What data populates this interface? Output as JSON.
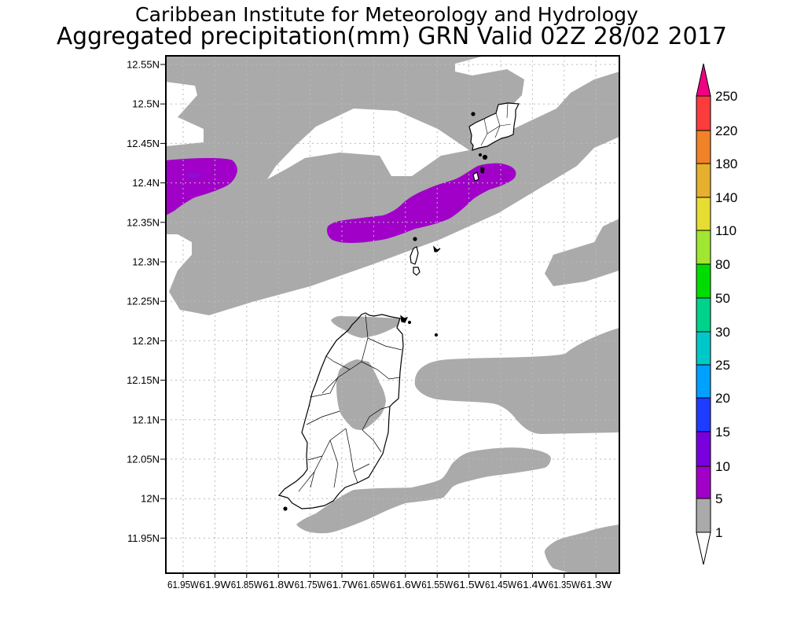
{
  "title": {
    "line1": "Caribbean Institute for Meteorology and Hydrology",
    "line2": "Aggregated precipitation(mm) GRN Valid 02Z 28/02 2017"
  },
  "map": {
    "y_labels": [
      "12.55N",
      "12.5N",
      "12.45N",
      "12.4N",
      "12.35N",
      "12.3N",
      "12.25N",
      "12.2N",
      "12.15N",
      "12.1N",
      "12.05N",
      "12N",
      "11.95N"
    ],
    "x_labels": [
      "61.95W",
      "61.9W",
      "61.85W",
      "61.8W",
      "61.75W",
      "61.7W",
      "61.65W",
      "61.6W",
      "61.55W",
      "61.5W",
      "61.45W",
      "61.4W",
      "61.35W",
      "61.3W"
    ],
    "colors": {
      "light_rain": "#aaaaaa",
      "moderate_rain": "#a000c8",
      "land": "#ffffff",
      "coast": "#000000"
    }
  },
  "colorbar": {
    "labels": [
      "1",
      "5",
      "10",
      "15",
      "20",
      "25",
      "30",
      "50",
      "80",
      "110",
      "140",
      "180",
      "220",
      "250"
    ],
    "colors": [
      "#aaaaaa",
      "#a000c8",
      "#7800dc",
      "#1e3cff",
      "#00a0ff",
      "#00c8c8",
      "#00d28c",
      "#00dc00",
      "#a0e632",
      "#e6dc32",
      "#e6af2d",
      "#f08228",
      "#fa3c3c"
    ],
    "under_color": "#ffffff",
    "over_color": "#f00082"
  }
}
